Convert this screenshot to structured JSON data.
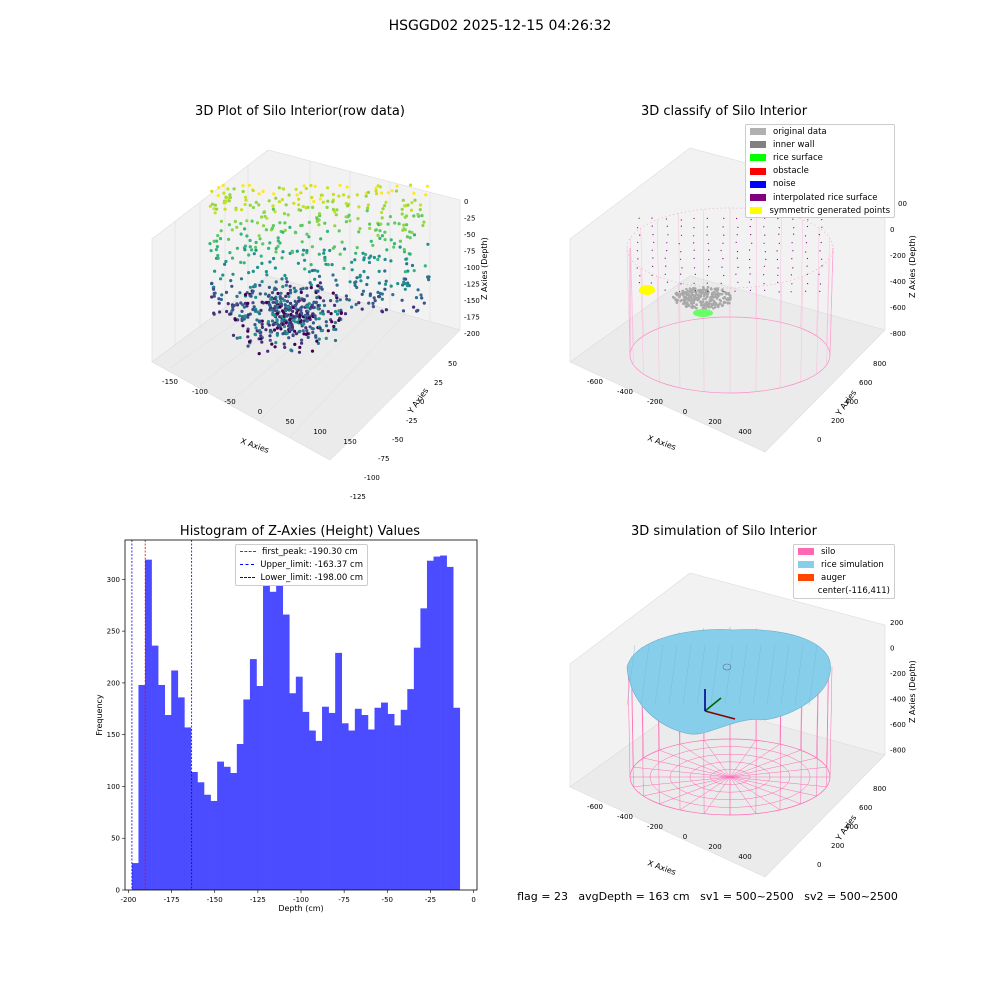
{
  "suptitle": "HSGGD02 2025-12-15 04:26:32",
  "panels": {
    "raw": {
      "title": "3D Plot of Silo Interior(row data)",
      "x_label": "X Axies",
      "y_label": "Y Axies",
      "z_label": "Z Axies (Depth)",
      "x_ticks": [
        "-150",
        "-100",
        "-50",
        "0",
        "50",
        "100",
        "150"
      ],
      "y_ticks": [
        "50",
        "25",
        "0",
        "-25",
        "-50",
        "-75",
        "-100",
        "-125"
      ],
      "z_ticks": [
        "0",
        "-25",
        "-50",
        "-75",
        "-100",
        "-125",
        "-150",
        "-175",
        "-200"
      ]
    },
    "classify": {
      "title": "3D classify of Silo Interior",
      "x_label": "X Axies",
      "y_label": "Y Axies",
      "z_label": "Z Axies (Depth)",
      "x_ticks": [
        "-600",
        "-400",
        "-200",
        "0",
        "200",
        "400"
      ],
      "y_ticks": [
        "800",
        "600",
        "400",
        "200",
        "0"
      ],
      "z_ticks": [
        "0",
        "-200",
        "-400",
        "-600",
        "-800"
      ],
      "z_top_tick": "00",
      "legend": [
        {
          "label": "original data",
          "color": "#b0b0b0"
        },
        {
          "label": "inner wall",
          "color": "#808080"
        },
        {
          "label": "rice surface",
          "color": "#00ff00"
        },
        {
          "label": "obstacle",
          "color": "#ff0000"
        },
        {
          "label": "noise",
          "color": "#0000ff"
        },
        {
          "label": "interpolated rice surface",
          "color": "#800080"
        },
        {
          "label": "symmetric generated points",
          "color": "#ffff00"
        }
      ]
    },
    "simulation": {
      "title": "3D simulation of Silo Interior",
      "x_label": "X Axies",
      "y_label": "Y Axies",
      "z_label": "Z Axies (Depth)",
      "x_ticks": [
        "-600",
        "-400",
        "-200",
        "0",
        "200",
        "400"
      ],
      "y_ticks": [
        "800",
        "600",
        "400",
        "200",
        "0"
      ],
      "z_ticks": [
        "200",
        "0",
        "-200",
        "-400",
        "-600",
        "-800"
      ],
      "legend": [
        {
          "label": "silo",
          "color": "#ff69b4"
        },
        {
          "label": "rice simulation",
          "color": "#87ceeb"
        },
        {
          "label": "auger",
          "color": "#ff4500"
        },
        {
          "label": "center(-116,411)",
          "color": ""
        }
      ]
    }
  },
  "chart_data": [
    {
      "type": "bar",
      "title": "Histogram of Z-Axies (Height) Values",
      "xlabel": "Depth (cm)",
      "ylabel": "Frequency",
      "xlim": [
        -202,
        2
      ],
      "ylim": [
        0,
        338
      ],
      "x_ticks": [
        -200,
        -175,
        -150,
        -125,
        -100,
        -75,
        -50,
        -25,
        0
      ],
      "y_ticks": [
        0,
        50,
        100,
        150,
        200,
        250,
        300
      ],
      "bin_start": -198,
      "bin_width": 3.8,
      "values": [
        26,
        198,
        319,
        236,
        198,
        169,
        212,
        186,
        157,
        114,
        104,
        92,
        86,
        124,
        119,
        113,
        141,
        184,
        223,
        197,
        319,
        288,
        300,
        266,
        190,
        206,
        172,
        154,
        144,
        177,
        171,
        229,
        161,
        154,
        175,
        169,
        155,
        176,
        181,
        170,
        159,
        174,
        194,
        234,
        272,
        318,
        322,
        323,
        312,
        176
      ],
      "color": "#4b4bff",
      "vlines": [
        {
          "label": "first_peak: -190.30 cm",
          "x": -190.3,
          "color": "#ff0000"
        },
        {
          "label": "Upper_limit: -163.37 cm",
          "x": -163.37,
          "color": "#0000ff"
        },
        {
          "label": "Lower_limit: -198.00 cm",
          "x": -198.0,
          "color": "#0000ff"
        }
      ]
    }
  ],
  "footer": "flag = 23   avgDepth = 163 cm   sv1 = 500~2500   sv2 = 500~2500"
}
